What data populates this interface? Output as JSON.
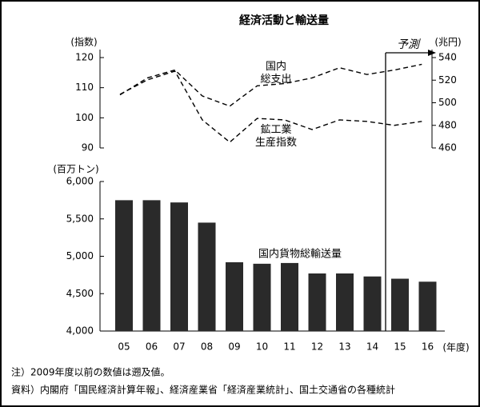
{
  "chart_data": [
    {
      "type": "line",
      "title": "経済活動と輸送量",
      "ylabel": "(指数)",
      "y2label": "(兆円)",
      "ylim": [
        90,
        120
      ],
      "yticks": [
        90,
        100,
        110,
        120
      ],
      "y2lim": [
        460,
        540
      ],
      "y2ticks": [
        460,
        480,
        500,
        520,
        540
      ],
      "series": [
        {
          "name": "国内\n総支出",
          "axis": "y2",
          "color": "#000000",
          "values": [
            507,
            522,
            529,
            506,
            497,
            515,
            517,
            522,
            531,
            525,
            529,
            534
          ]
        },
        {
          "name": "鉱工業\n生産指数",
          "color": "#000000",
          "values": [
            107.8,
            112.6,
            115.5,
            99.3,
            91.9,
            99.8,
            99.3,
            96.1,
            99.3,
            98.8,
            97.5,
            98.8
          ]
        }
      ],
      "annotations": [
        "予測"
      ]
    },
    {
      "type": "bar",
      "ylabel": "(百万トン)",
      "xlabel": "(年度)",
      "categories": [
        "05",
        "06",
        "07",
        "08",
        "09",
        "10",
        "11",
        "12",
        "13",
        "14",
        "15",
        "16"
      ],
      "series": [
        {
          "name": "国内貨物総輸送量",
          "color": "#2a2a2a",
          "values": [
            5750,
            5750,
            5720,
            5450,
            4920,
            4900,
            4910,
            4770,
            4770,
            4730,
            4700,
            4660
          ]
        }
      ],
      "ylim": [
        4000,
        6000
      ],
      "yticks": [
        {
          "value": 4000,
          "label": "4,000"
        },
        {
          "value": 4500,
          "label": "4,500"
        },
        {
          "value": 5000,
          "label": "5,000"
        },
        {
          "value": 5500,
          "label": "5,500"
        },
        {
          "value": 6000,
          "label": "6,000"
        }
      ]
    }
  ],
  "notes": [
    "注）2009年度以前の数値は遡及値。",
    "資料）内閣府「国民経済計算年報」、経済産業省「経済産業統計」、国土交通省の各種統計"
  ]
}
